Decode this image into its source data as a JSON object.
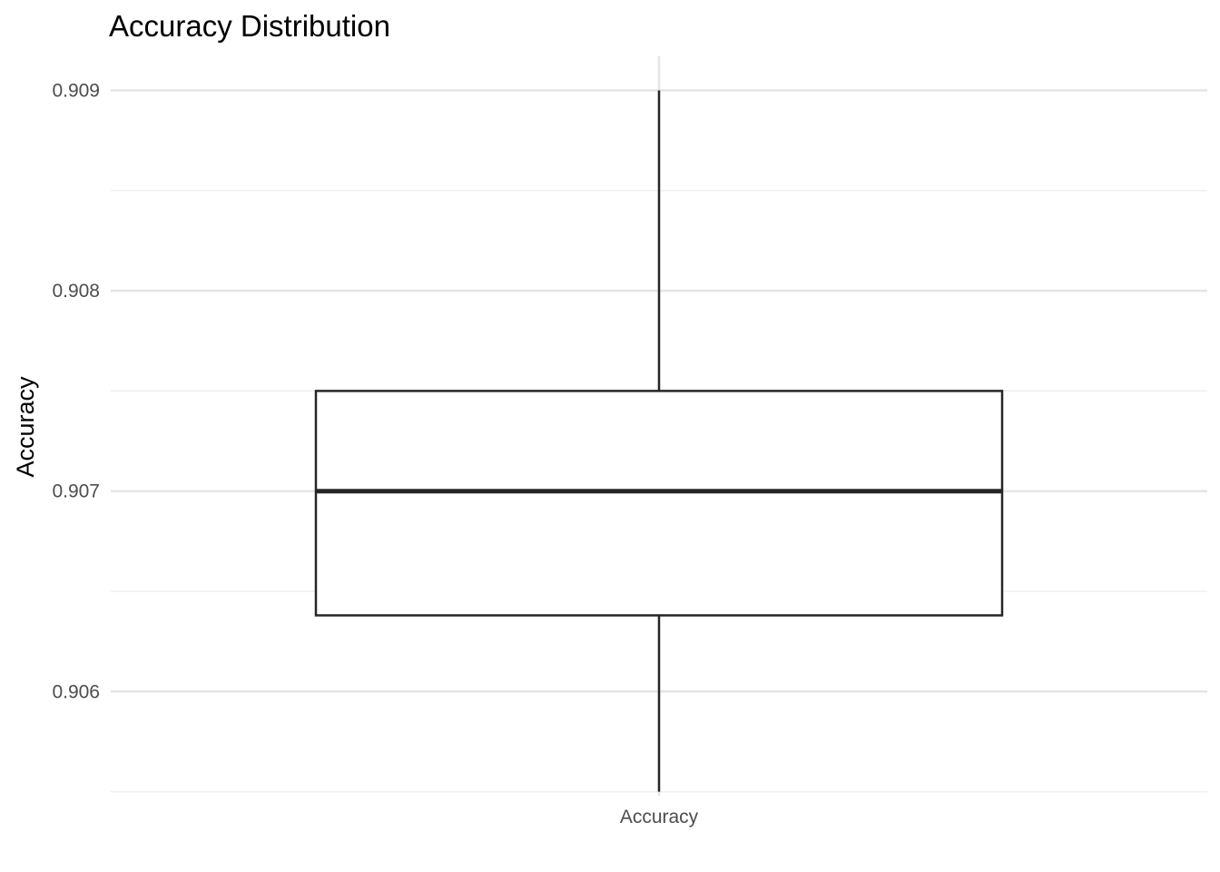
{
  "chart_data": {
    "type": "box",
    "title": "Accuracy Distribution",
    "xlabel": "",
    "ylabel": "Accuracy",
    "categories": [
      "Accuracy"
    ],
    "ylim": [
      0.90548,
      0.90917
    ],
    "y_ticks": [
      0.906,
      0.907,
      0.908,
      0.909
    ],
    "y_tick_labels": [
      "0.906",
      "0.907",
      "0.908",
      "0.909"
    ],
    "y_minor_ticks": [
      0.9055,
      0.9065,
      0.9075,
      0.9085
    ],
    "grid": true,
    "legend": "none",
    "boxes": [
      {
        "category": "Accuracy",
        "whisker_low": 0.9055,
        "q1": 0.90638,
        "median": 0.907,
        "q3": 0.9075,
        "whisker_high": 0.909
      }
    ],
    "colors": {
      "box_stroke": "#262626",
      "box_fill": "#ffffff",
      "grid_major": "#e5e5e5",
      "grid_minor": "#efefef",
      "tick_text": "#4d4d4d"
    }
  }
}
